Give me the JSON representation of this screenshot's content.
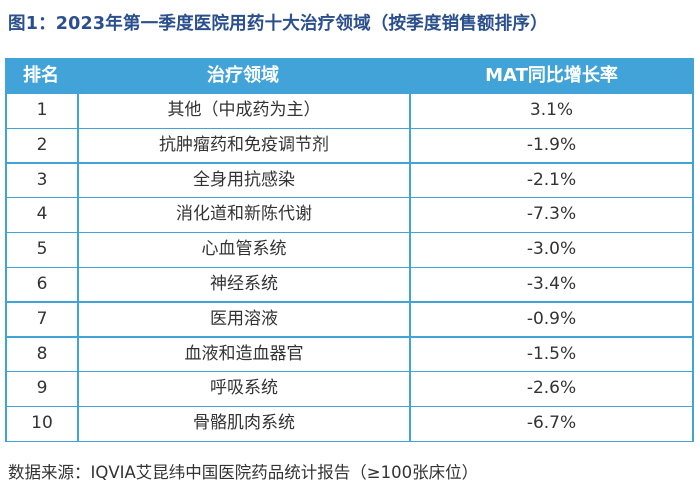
{
  "title": "图1：2023年第一季度医院用药十大治疗领域（按季度销售额排序）",
  "table": {
    "headers": [
      "排名",
      "治疗领域",
      "MAT同比增长率"
    ],
    "rows": [
      {
        "rank": "1",
        "area": "其他（中成药为主）",
        "growth": "3.1%"
      },
      {
        "rank": "2",
        "area": "抗肿瘤药和免疫调节剂",
        "growth": "-1.9%"
      },
      {
        "rank": "3",
        "area": "全身用抗感染",
        "growth": "-2.1%"
      },
      {
        "rank": "4",
        "area": "消化道和新陈代谢",
        "growth": "-7.3%"
      },
      {
        "rank": "5",
        "area": "心血管系统",
        "growth": "-3.0%"
      },
      {
        "rank": "6",
        "area": "神经系统",
        "growth": "-3.4%"
      },
      {
        "rank": "7",
        "area": "医用溶液",
        "growth": "-0.9%"
      },
      {
        "rank": "8",
        "area": "血液和造血器官",
        "growth": "-1.5%"
      },
      {
        "rank": "9",
        "area": "呼吸系统",
        "growth": "-2.6%"
      },
      {
        "rank": "10",
        "area": "骨骼肌肉系统",
        "growth": "-6.7%"
      }
    ]
  },
  "source": "数据来源：IQVIA艾昆纬中国医院药品统计报告（≥100张床位）",
  "colors": {
    "title": "#2a4f8c",
    "table_border": "#41a3d8",
    "header_text": "#ffffff"
  }
}
